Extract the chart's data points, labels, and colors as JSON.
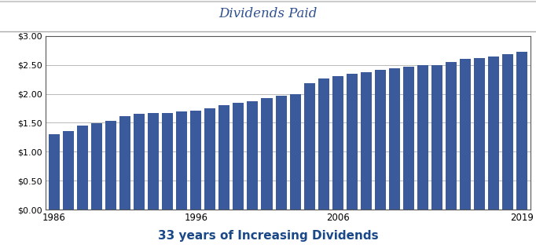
{
  "title": "Dividends Paid",
  "subtitle": "33 years of Increasing Dividends",
  "years": [
    1986,
    1987,
    1988,
    1989,
    1990,
    1991,
    1992,
    1993,
    1994,
    1995,
    1996,
    1997,
    1998,
    1999,
    2000,
    2001,
    2002,
    2003,
    2004,
    2005,
    2006,
    2007,
    2008,
    2009,
    2010,
    2011,
    2012,
    2013,
    2014,
    2015,
    2016,
    2017,
    2018,
    2019
  ],
  "values": [
    1.3,
    1.36,
    1.45,
    1.49,
    1.53,
    1.62,
    1.65,
    1.67,
    1.67,
    1.7,
    1.71,
    1.75,
    1.8,
    1.85,
    1.87,
    1.93,
    1.97,
    2.0,
    2.18,
    2.27,
    2.3,
    2.34,
    2.38,
    2.42,
    2.44,
    2.47,
    2.5,
    2.5,
    2.555,
    2.6,
    2.615,
    2.65,
    2.69,
    2.73
  ],
  "bar_color": "#3A5A9B",
  "ylim": [
    0,
    3.0
  ],
  "ytick_labels": [
    "$0.00",
    "$0.50",
    "$1.00",
    "$1.50",
    "$2.00",
    "$2.50",
    "$3.00"
  ],
  "ytick_values": [
    0.0,
    0.5,
    1.0,
    1.5,
    2.0,
    2.5,
    3.0
  ],
  "xtick_years": [
    1986,
    1996,
    2006,
    2019
  ],
  "grid_color": "#b8b8b8",
  "title_color": "#2E5090",
  "subtitle_color": "#1a4888",
  "subtitle_fontsize": 11,
  "title_fontsize": 12,
  "top_border_color": "#cccccc",
  "mid_border_color": "#aaaaaa"
}
